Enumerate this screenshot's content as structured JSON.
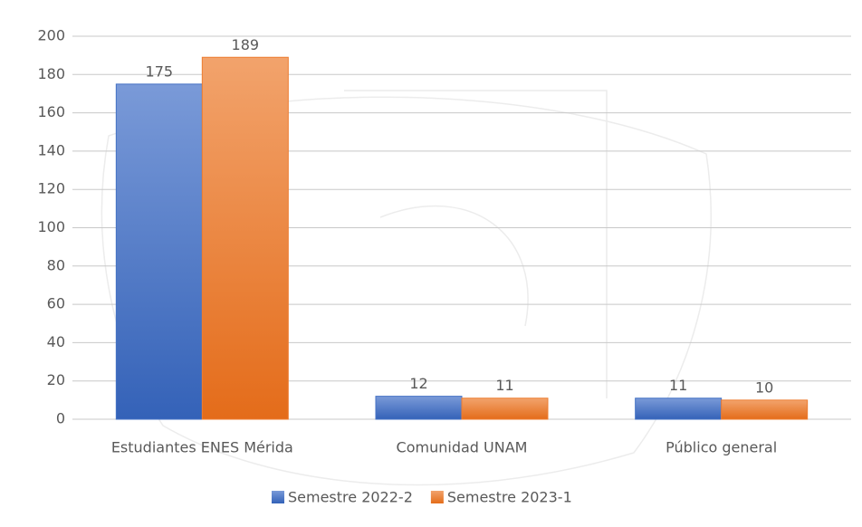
{
  "chart_data": {
    "type": "bar",
    "categories": [
      "Estudiantes ENES Mérida",
      "Comunidad UNAM",
      "Público general"
    ],
    "series": [
      {
        "name": "Semestre 2022-2",
        "color": "#4472c4",
        "values": [
          175,
          12,
          11
        ]
      },
      {
        "name": "Semestre 2023-1",
        "color": "#ed7d31",
        "values": [
          189,
          11,
          10
        ]
      }
    ],
    "ylim": [
      0,
      200
    ],
    "yticks": [
      0,
      20,
      40,
      60,
      80,
      100,
      120,
      140,
      160,
      180,
      200
    ],
    "grid": true,
    "legend": "bottom"
  }
}
